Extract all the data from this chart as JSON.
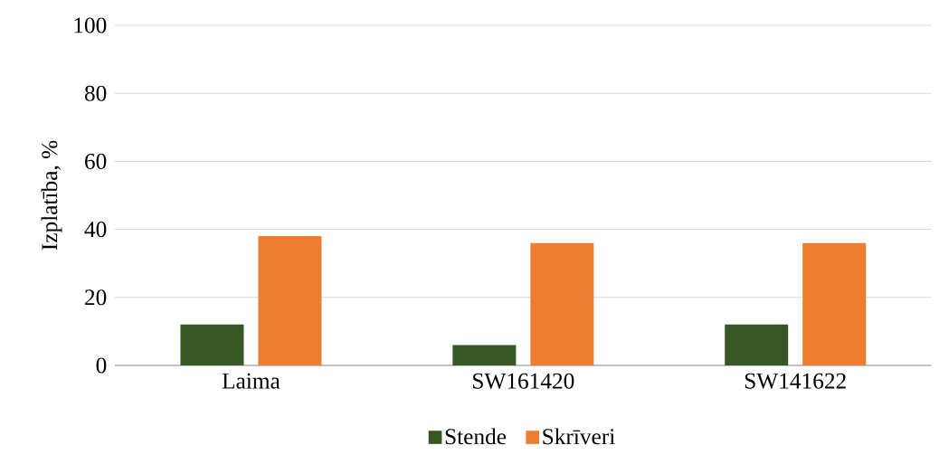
{
  "chart_data": {
    "type": "bar",
    "ylabel": "Izplatība, %",
    "categories": [
      "Laima",
      "SW161420",
      "SW141622"
    ],
    "series": [
      {
        "name": "Stende",
        "color": "#375623",
        "values": [
          12,
          6,
          12
        ]
      },
      {
        "name": "Skrīveri",
        "color": "#ed7d31",
        "values": [
          38,
          36,
          36
        ]
      }
    ],
    "ylim": [
      0,
      100
    ],
    "yticks": [
      0,
      20,
      40,
      60,
      80,
      100
    ],
    "grid": "y",
    "legend": "bottom"
  }
}
